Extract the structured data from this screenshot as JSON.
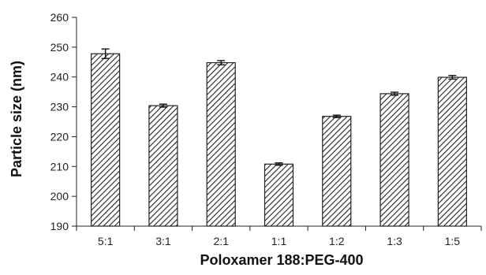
{
  "chart_data": {
    "type": "bar",
    "title": "",
    "xlabel": "Poloxamer 188:PEG-400",
    "ylabel": "Particle size (nm)",
    "categories": [
      "5:1",
      "3:1",
      "2:1",
      "1:1",
      "1:2",
      "1:3",
      "1:5"
    ],
    "values": [
      247.8,
      230.4,
      244.8,
      210.8,
      226.8,
      234.4,
      239.9
    ],
    "errors": [
      1.6,
      0.5,
      0.7,
      0.4,
      0.4,
      0.5,
      0.6
    ],
    "ylim": [
      190,
      260
    ],
    "yticks": [
      "190",
      "200",
      "210",
      "220",
      "230",
      "240",
      "250",
      "260"
    ],
    "grid": false,
    "legend": "none",
    "bar_fill": "diagonal-hatch",
    "bar_color": "#222222"
  }
}
